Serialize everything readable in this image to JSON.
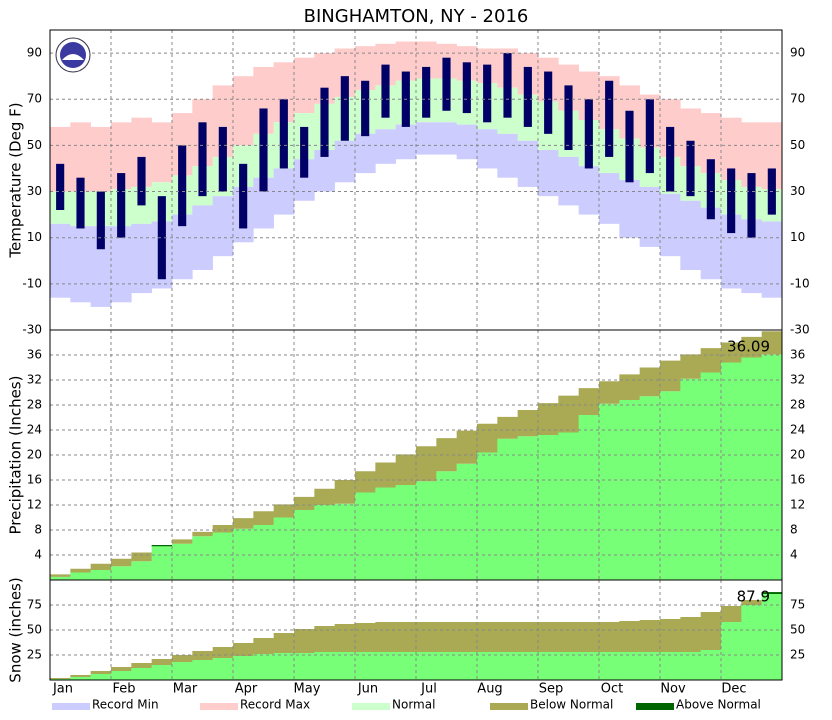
{
  "title": "BINGHAMTON, NY - 2016",
  "months": [
    "Jan",
    "Feb",
    "Mar",
    "Apr",
    "May",
    "Jun",
    "Jul",
    "Aug",
    "Sep",
    "Oct",
    "Nov",
    "Dec"
  ],
  "legend": [
    {
      "name": "Record Min",
      "color": "#ccccff"
    },
    {
      "name": "Record Max",
      "color": "#ffcccc"
    },
    {
      "name": "Normal",
      "color": "#ccffcc"
    },
    {
      "name": "Below Normal",
      "color": "#aaaa55"
    },
    {
      "name": "Above Normal",
      "color": "#006600"
    }
  ],
  "chart_data": [
    {
      "type": "range",
      "y_label": "Temperature (Deg F)",
      "ylim": [
        -30,
        100
      ],
      "yticks": [
        -30,
        -10,
        10,
        30,
        50,
        70,
        90
      ],
      "grid": true,
      "record_min": [
        -16,
        -18,
        -20,
        -18,
        -14,
        -12,
        -8,
        -4,
        2,
        8,
        14,
        20,
        26,
        30,
        34,
        38,
        42,
        44,
        46,
        46,
        44,
        40,
        36,
        32,
        28,
        24,
        20,
        16,
        10,
        6,
        2,
        -4,
        -8,
        -12,
        -14,
        -16
      ],
      "record_max": [
        58,
        60,
        58,
        60,
        62,
        60,
        64,
        70,
        76,
        80,
        84,
        86,
        88,
        90,
        92,
        93,
        94,
        95,
        95,
        94,
        93,
        92,
        92,
        90,
        88,
        85,
        82,
        80,
        76,
        72,
        70,
        66,
        64,
        62,
        60,
        60
      ],
      "normal_low": [
        16,
        15,
        15,
        15,
        16,
        17,
        20,
        24,
        28,
        32,
        36,
        40,
        44,
        48,
        52,
        55,
        57,
        59,
        60,
        60,
        59,
        57,
        55,
        52,
        48,
        45,
        41,
        38,
        35,
        32,
        29,
        26,
        23,
        20,
        18,
        17
      ],
      "normal_high": [
        30,
        30,
        30,
        31,
        32,
        34,
        37,
        41,
        45,
        50,
        55,
        60,
        64,
        68,
        71,
        74,
        76,
        78,
        79,
        79,
        78,
        77,
        75,
        72,
        69,
        65,
        61,
        57,
        53,
        49,
        45,
        41,
        38,
        35,
        32,
        31
      ],
      "observed": {
        "color": "#000066",
        "low": [
          22,
          14,
          5,
          10,
          24,
          -8,
          15,
          28,
          30,
          14,
          30,
          40,
          36,
          45,
          52,
          54,
          62,
          58,
          62,
          65,
          64,
          60,
          62,
          58,
          55,
          48,
          40,
          45,
          34,
          38,
          30,
          28,
          18,
          12,
          10,
          20
        ],
        "high": [
          42,
          36,
          30,
          38,
          45,
          28,
          50,
          60,
          58,
          42,
          66,
          70,
          58,
          75,
          80,
          78,
          85,
          82,
          84,
          88,
          86,
          85,
          90,
          84,
          82,
          76,
          70,
          78,
          65,
          70,
          58,
          52,
          44,
          40,
          38,
          40
        ]
      }
    },
    {
      "type": "cumulative",
      "y_label": "Precipitation (Inches)",
      "ylim": [
        0,
        40
      ],
      "yticks": [
        4,
        8,
        12,
        16,
        20,
        24,
        28,
        32,
        36
      ],
      "grid": true,
      "annotation": "36.09",
      "normal": [
        0.9,
        1.8,
        2.6,
        3.4,
        4.4,
        5.4,
        6.5,
        7.7,
        8.8,
        9.9,
        11.0,
        12.1,
        13.3,
        14.6,
        16.0,
        17.4,
        18.8,
        20.1,
        21.4,
        22.7,
        23.9,
        25.0,
        26.1,
        27.2,
        28.3,
        29.5,
        30.7,
        31.8,
        32.9,
        34.0,
        35.1,
        36.1,
        37.1,
        38.0,
        38.9,
        39.8
      ],
      "observed": {
        "color": "#77ff77",
        "values": [
          0.5,
          1.2,
          1.6,
          2.2,
          3.0,
          5.6,
          5.8,
          7.0,
          7.6,
          8.2,
          8.8,
          10.0,
          11.2,
          12.0,
          12.2,
          14.0,
          14.8,
          15.2,
          15.8,
          17.4,
          18.6,
          20.4,
          22.6,
          23.0,
          23.2,
          23.6,
          26.4,
          28.2,
          28.8,
          29.4,
          30.2,
          32.2,
          33.2,
          34.8,
          35.6,
          36.09
        ]
      }
    },
    {
      "type": "cumulative",
      "y_label": "Snow (inches)",
      "ylim": [
        0,
        100
      ],
      "yticks": [
        25,
        50,
        75
      ],
      "grid": true,
      "annotation": "87.9",
      "normal": [
        2,
        5,
        9,
        13,
        17,
        21,
        25,
        29,
        33,
        37,
        42,
        47,
        51,
        54,
        56,
        57,
        58,
        58,
        58,
        58,
        58,
        58,
        58,
        58,
        58,
        58,
        58,
        58,
        59,
        60,
        61,
        63,
        68,
        74,
        80,
        86
      ],
      "observed": {
        "color": "#77ff77",
        "values": [
          1,
          3,
          6,
          9,
          12,
          15,
          18,
          20,
          22,
          24,
          26,
          27,
          27,
          28,
          28,
          28,
          28,
          28,
          28,
          28,
          28,
          28,
          28,
          28,
          28,
          28,
          28,
          28,
          28,
          28,
          28,
          28,
          30,
          58,
          75,
          87.9
        ]
      }
    }
  ]
}
